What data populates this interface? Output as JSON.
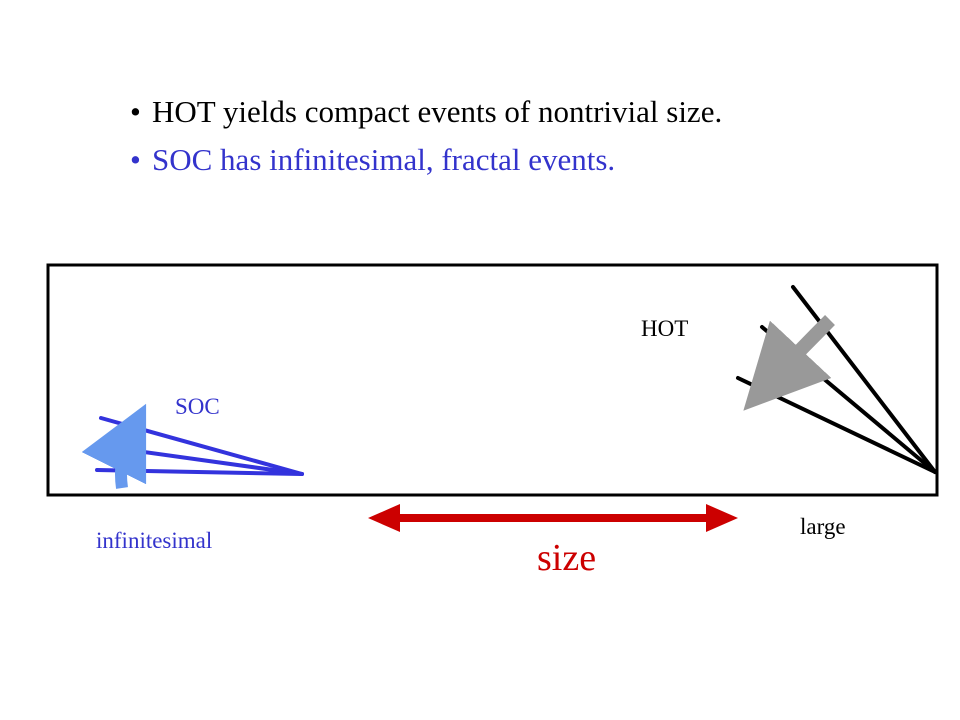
{
  "bullets": [
    {
      "marker": "•",
      "text": "HOT yields compact events of nontrivial size.",
      "color": "#000000"
    },
    {
      "marker": "•",
      "text": "SOC has infinitesimal, fractal events.",
      "color": "#3333cc"
    }
  ],
  "diagram": {
    "hot_label": "HOT",
    "soc_label": "SOC",
    "left_label": "infinitesimal",
    "right_label": "large",
    "axis_label": "size",
    "colors": {
      "hot_lines": "#000000",
      "hot_arrow": "#999999",
      "soc_lines": "#3333dd",
      "soc_arrow": "#6699ee",
      "size_arrow": "#cc0000",
      "frame": "#000000"
    }
  }
}
